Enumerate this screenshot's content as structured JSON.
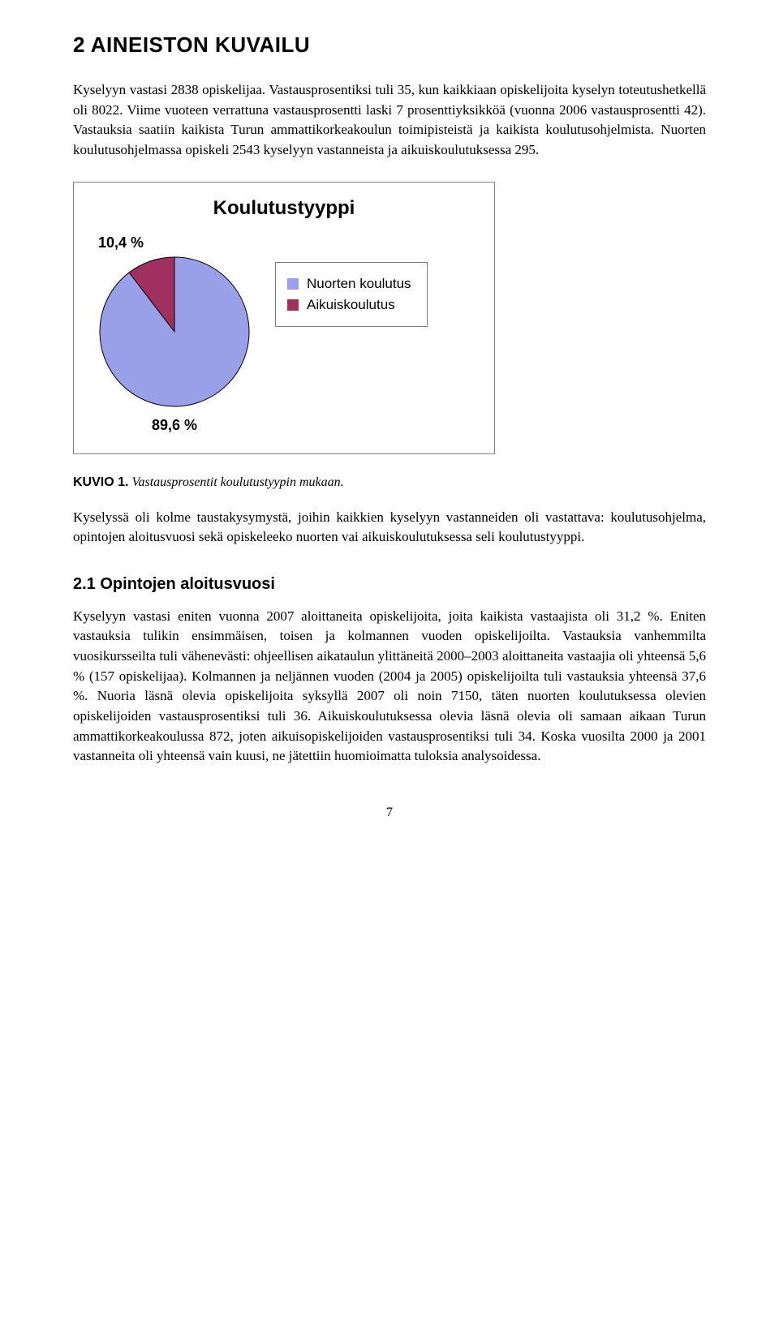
{
  "heading": "2  AINEISTON KUVAILU",
  "paragraph1": "Kyselyyn vastasi 2838 opiskelijaa. Vastausprosentiksi tuli 35, kun kaikkiaan opiskelijoita kyselyn toteutushetkellä oli 8022. Viime vuoteen verrattuna vastausprosentti laski 7 prosenttiyksikköä (vuonna 2006 vastausprosentti 42). Vastauksia saatiin kaikista Turun ammattikorkeakoulun toimipisteistä ja kaikista koulutusohjelmista. Nuorten koulutusohjelmassa opiskeli 2543 kyselyyn vastanneista ja aikuiskoulutuksessa 295.",
  "chart": {
    "type": "pie",
    "title": "Koulutustyyppi",
    "slices": [
      {
        "label": "Nuorten koulutus",
        "value": 89.6,
        "display": "89,6 %",
        "color": "#99a0e8"
      },
      {
        "label": "Aikuiskoulutus",
        "value": 10.4,
        "display": "10,4 %",
        "color": "#a03060"
      }
    ],
    "background_color": "#ffffff",
    "border_color": "#7f7f7f",
    "title_fontsize": 24,
    "label_fontsize": 18,
    "legend_fontsize": 17,
    "pie_radius": 92,
    "slice_border_color": "#000000"
  },
  "figure_caption_label": "KUVIO 1.",
  "figure_caption_text": "Vastausprosentit koulutustyypin mukaan.",
  "paragraph2": "Kyselyssä oli kolme taustakysymystä, joihin kaikkien kyselyyn vastanneiden oli vastattava: koulutusohjelma, opintojen aloitusvuosi sekä opiskeleeko nuorten vai aikuiskoulutuksessa seli koulutustyyppi.",
  "subheading": "2.1 Opintojen aloitusvuosi",
  "paragraph3": "Kyselyyn vastasi eniten vuonna 2007 aloittaneita opiskelijoita, joita kaikista vastaajista oli 31,2 %. Eniten vastauksia tulikin ensimmäisen, toisen ja kolmannen vuoden opiskelijoilta. Vastauksia vanhemmilta vuosikursseilta tuli vähenevästi: ohjeellisen aikataulun ylittäneitä 2000–2003 aloittaneita vastaajia oli yhteensä 5,6 % (157 opiskelijaa). Kolmannen ja neljännen vuoden (2004 ja 2005) opiskelijoilta tuli vastauksia yhteensä 37,6 %. Nuoria läsnä olevia opiskelijoita syksyllä 2007 oli noin 7150, täten nuorten koulutuksessa olevien opiskelijoiden vastausprosentiksi tuli 36. Aikuiskoulutuksessa olevia läsnä olevia oli samaan aikaan Turun ammattikorkeakoulussa 872, joten aikuisopiskelijoiden vastausprosentiksi tuli 34. Koska vuosilta 2000 ja 2001 vastanneita oli yhteensä vain kuusi, ne jätettiin huomioimatta tuloksia analysoidessa.",
  "page_number": "7"
}
